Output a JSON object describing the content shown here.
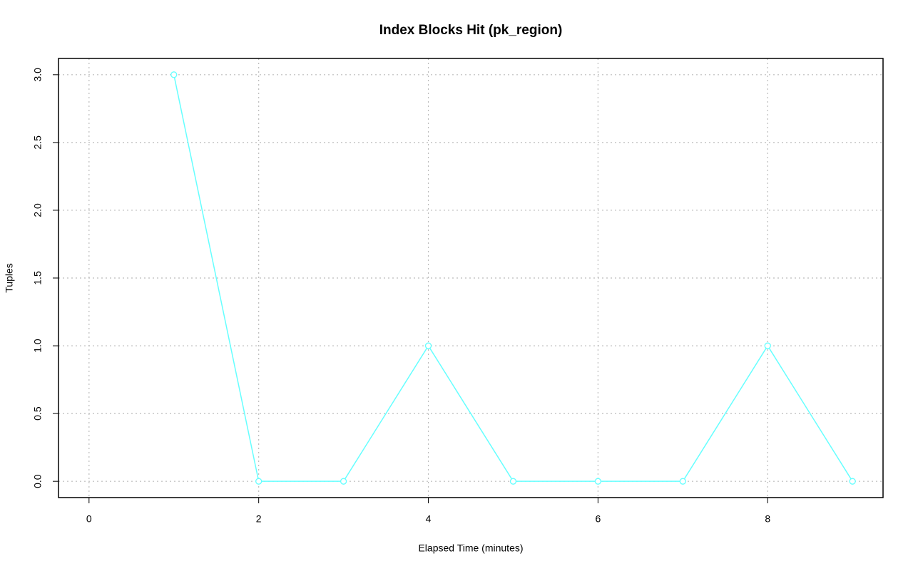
{
  "chart_data": {
    "type": "line",
    "title": "Index Blocks Hit (pk_region)",
    "x_label": "Elapsed Time (minutes)",
    "y_label": "Tuples",
    "series": [
      {
        "color": "#66ffff",
        "x": [
          1,
          2,
          3,
          4,
          5,
          6,
          7,
          8,
          9
        ],
        "values": [
          3,
          0,
          0,
          1,
          0,
          0,
          0,
          1,
          0
        ]
      }
    ],
    "xlim": [
      -0.36,
      9.36
    ],
    "ylim": [
      -0.12,
      3.12
    ],
    "xticks": [
      0,
      2,
      4,
      6,
      8
    ],
    "yticks": [
      {
        "value": 0,
        "label": "0.0"
      },
      {
        "value": 0.5,
        "label": "0.5"
      },
      {
        "value": 1,
        "label": "1.0"
      },
      {
        "value": 1.5,
        "label": "1.5"
      },
      {
        "value": 2,
        "label": "2.0"
      },
      {
        "value": 2.5,
        "label": "2.5"
      },
      {
        "value": 3,
        "label": "3.0"
      }
    ],
    "grid": true
  }
}
